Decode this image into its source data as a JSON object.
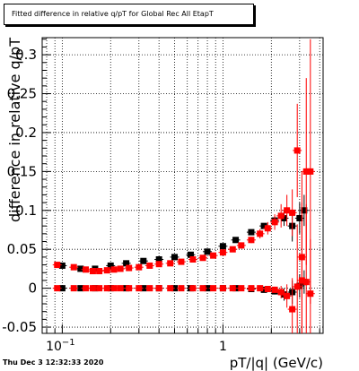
{
  "plot": {
    "title": "Fitted difference in relative q/pT for Global Rec All EtapT",
    "timestamp": "Thu Dec  3 12:32:33 2020"
  },
  "chart_data": {
    "type": "scatter",
    "title": "Fitted difference in relative q/pT for Global Rec All EtapT",
    "xlabel": "pT/|q| (GeV/c)",
    "ylabel": "difference in relative q/pT",
    "xscale": "log",
    "xlim": [
      0.075,
      4.2
    ],
    "ylim": [
      -0.058,
      0.322
    ],
    "grid": true,
    "x_tick_labels": [
      "10^-1",
      "1"
    ],
    "y_tick_labels": [
      "-0.05",
      "0",
      "0.05",
      "0.1",
      "0.15",
      "0.2",
      "0.25",
      "0.3"
    ],
    "y_ticks": [
      -0.05,
      0,
      0.05,
      0.1,
      0.15,
      0.2,
      0.25,
      0.3
    ],
    "series": [
      {
        "color": "#000000",
        "marker": "square",
        "x": [
          0.1,
          0.13,
          0.16,
          0.2,
          0.25,
          0.32,
          0.4,
          0.5,
          0.63,
          0.8,
          1.0,
          1.2,
          1.5,
          1.8,
          2.1,
          2.4,
          2.7,
          3.0,
          3.2
        ],
        "y": [
          0.029,
          0.025,
          0.025,
          0.029,
          0.032,
          0.035,
          0.037,
          0.04,
          0.043,
          0.047,
          0.054,
          0.062,
          0.072,
          0.08,
          0.087,
          0.09,
          0.08,
          0.09,
          0.1
        ],
        "yerr": [
          0,
          0,
          0,
          0,
          0,
          0,
          0,
          0,
          0,
          0,
          0,
          0,
          0,
          0,
          0.005,
          0.01,
          0.02,
          0.02,
          0.02
        ]
      },
      {
        "color": "#000000",
        "marker": "square",
        "x": [
          0.1,
          0.13,
          0.16,
          0.2,
          0.25,
          0.32,
          0.4,
          0.5,
          0.63,
          0.8,
          1.0,
          1.2,
          1.5,
          1.8,
          2.1,
          2.4,
          2.7,
          3.0,
          3.2
        ],
        "y": [
          0.0,
          0.0,
          0.0,
          0.0,
          0.0,
          0.0,
          0.0,
          0.0,
          0.0,
          0.0,
          0.0,
          0.0,
          -0.001,
          -0.002,
          -0.004,
          -0.008,
          -0.005,
          0.003,
          0.008
        ],
        "yerr": [
          0,
          0,
          0,
          0,
          0,
          0,
          0,
          0,
          0,
          0,
          0,
          0,
          0,
          0,
          0.004,
          0.008,
          0.015,
          0.015,
          0.015
        ]
      },
      {
        "color": "#ff0000",
        "marker": "square",
        "x": [
          0.093,
          0.118,
          0.14,
          0.155,
          0.17,
          0.19,
          0.21,
          0.23,
          0.26,
          0.3,
          0.35,
          0.4,
          0.47,
          0.55,
          0.65,
          0.75,
          0.87,
          1.0,
          1.15,
          1.3,
          1.5,
          1.7,
          1.9,
          2.1,
          2.3,
          2.5,
          2.7,
          2.9,
          3.1,
          3.3,
          3.5
        ],
        "y": [
          0.03,
          0.027,
          0.024,
          0.022,
          0.022,
          0.023,
          0.024,
          0.025,
          0.026,
          0.027,
          0.029,
          0.031,
          0.032,
          0.034,
          0.037,
          0.039,
          0.042,
          0.046,
          0.05,
          0.055,
          0.062,
          0.07,
          0.077,
          0.085,
          0.093,
          0.1,
          0.097,
          0.177,
          0.04,
          0.15,
          0.15
        ],
        "yerr": [
          0,
          0,
          0,
          0,
          0,
          0,
          0,
          0,
          0,
          0,
          0,
          0,
          0,
          0,
          0,
          0,
          0,
          0,
          0,
          0.002,
          0.004,
          0.006,
          0.008,
          0.01,
          0.015,
          0.02,
          0.03,
          0.06,
          0.11,
          0.12,
          0.17
        ]
      },
      {
        "color": "#ff0000",
        "marker": "square",
        "x": [
          0.093,
          0.118,
          0.14,
          0.155,
          0.17,
          0.19,
          0.21,
          0.23,
          0.26,
          0.3,
          0.35,
          0.4,
          0.47,
          0.55,
          0.65,
          0.75,
          0.87,
          1.0,
          1.15,
          1.3,
          1.5,
          1.7,
          1.9,
          2.1,
          2.3,
          2.5,
          2.7,
          2.9,
          3.1,
          3.3,
          3.5
        ],
        "y": [
          0.0,
          0.0,
          0.0,
          0.0,
          0.0,
          0.0,
          0.0,
          0.0,
          0.0,
          0.0,
          0.0,
          0.0,
          0.0,
          0.0,
          0.0,
          0.0,
          0.0,
          0.0,
          0.0,
          0.0,
          0.0,
          0.0,
          -0.001,
          -0.002,
          -0.005,
          -0.01,
          -0.027,
          0.002,
          0.01,
          0.008,
          -0.007
        ],
        "yerr": [
          0,
          0,
          0,
          0,
          0,
          0,
          0,
          0,
          0,
          0,
          0,
          0,
          0,
          0,
          0,
          0,
          0,
          0,
          0,
          0,
          0,
          0,
          0.002,
          0.004,
          0.008,
          0.015,
          0.04,
          0.08,
          0.1,
          0.1,
          0.07
        ]
      }
    ]
  }
}
